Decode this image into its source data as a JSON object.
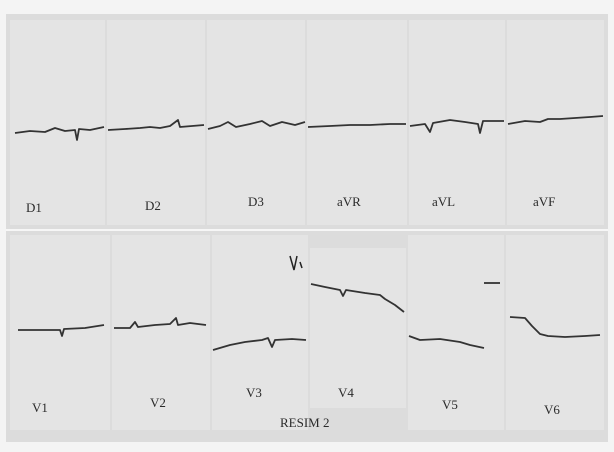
{
  "leads": {
    "top": [
      "D1",
      "D2",
      "D3",
      "aVR",
      "aVL",
      "aVF"
    ],
    "bottom": [
      "V1",
      "V2",
      "V3",
      "V4",
      "V5",
      "V6"
    ]
  },
  "caption": "RESIM 2"
}
